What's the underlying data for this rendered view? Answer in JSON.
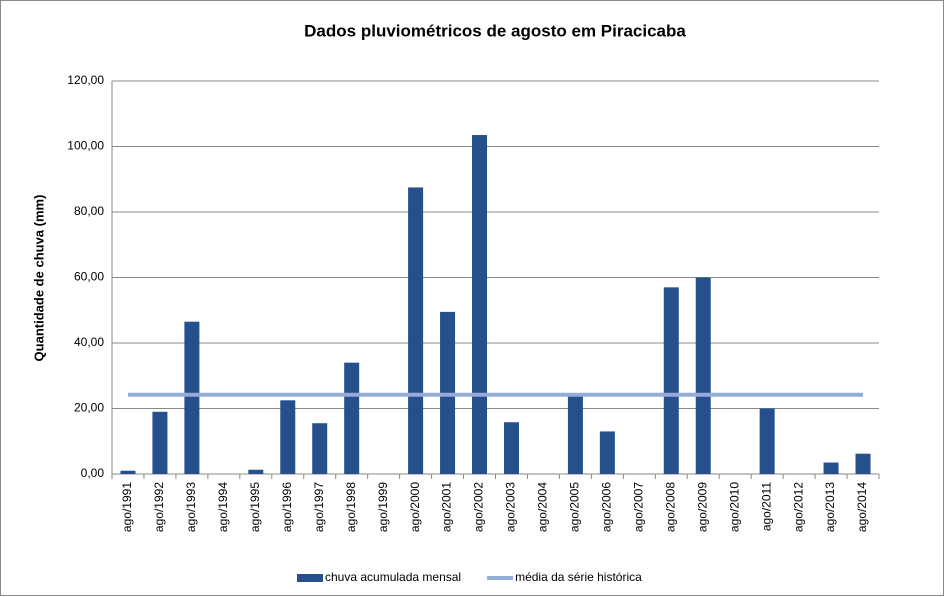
{
  "chart_data": {
    "type": "bar-line",
    "title": "Dados pluviométricos de agosto em Piracicaba",
    "y_label": "Quantidade de chuva (mm)",
    "categories": [
      "ago/1991",
      "ago/1992",
      "ago/1993",
      "ago/1994",
      "ago/1995",
      "ago/1996",
      "ago/1997",
      "ago/1998",
      "ago/1999",
      "ago/2000",
      "ago/2001",
      "ago/2002",
      "ago/2003",
      "ago/2004",
      "ago/2005",
      "ago/2006",
      "ago/2007",
      "ago/2008",
      "ago/2009",
      "ago/2010",
      "ago/2011",
      "ago/2012",
      "ago/2013",
      "ago/2014"
    ],
    "series": [
      {
        "name": "chuva acumulada mensal",
        "type": "bar",
        "color": "#254f8d",
        "values": [
          1.0,
          19.0,
          46.5,
          0,
          1.3,
          22.5,
          15.5,
          34.0,
          0,
          87.5,
          49.5,
          103.5,
          15.8,
          0,
          24.5,
          13.0,
          0,
          57.0,
          60.0,
          0,
          20.0,
          0,
          3.5,
          6.2
        ]
      },
      {
        "name": "média da série histórica",
        "type": "line",
        "color": "#94acd8",
        "values": [
          24.2,
          24.2,
          24.2,
          24.2,
          24.2,
          24.2,
          24.2,
          24.2,
          24.2,
          24.2,
          24.2,
          24.2,
          24.2,
          24.2,
          24.2,
          24.2,
          24.2,
          24.2,
          24.2,
          24.2,
          24.2,
          24.2,
          24.2,
          24.2
        ]
      }
    ],
    "ylim": [
      0,
      120
    ],
    "yticks": [
      {
        "value": 0,
        "label": "0,00"
      },
      {
        "value": 20,
        "label": "20,00"
      },
      {
        "value": 40,
        "label": "40,00"
      },
      {
        "value": 60,
        "label": "60,00"
      },
      {
        "value": 80,
        "label": "80,00"
      },
      {
        "value": 100,
        "label": "100,00"
      },
      {
        "value": 120,
        "label": "120,00"
      }
    ],
    "grid": true,
    "legend": "bottom"
  }
}
